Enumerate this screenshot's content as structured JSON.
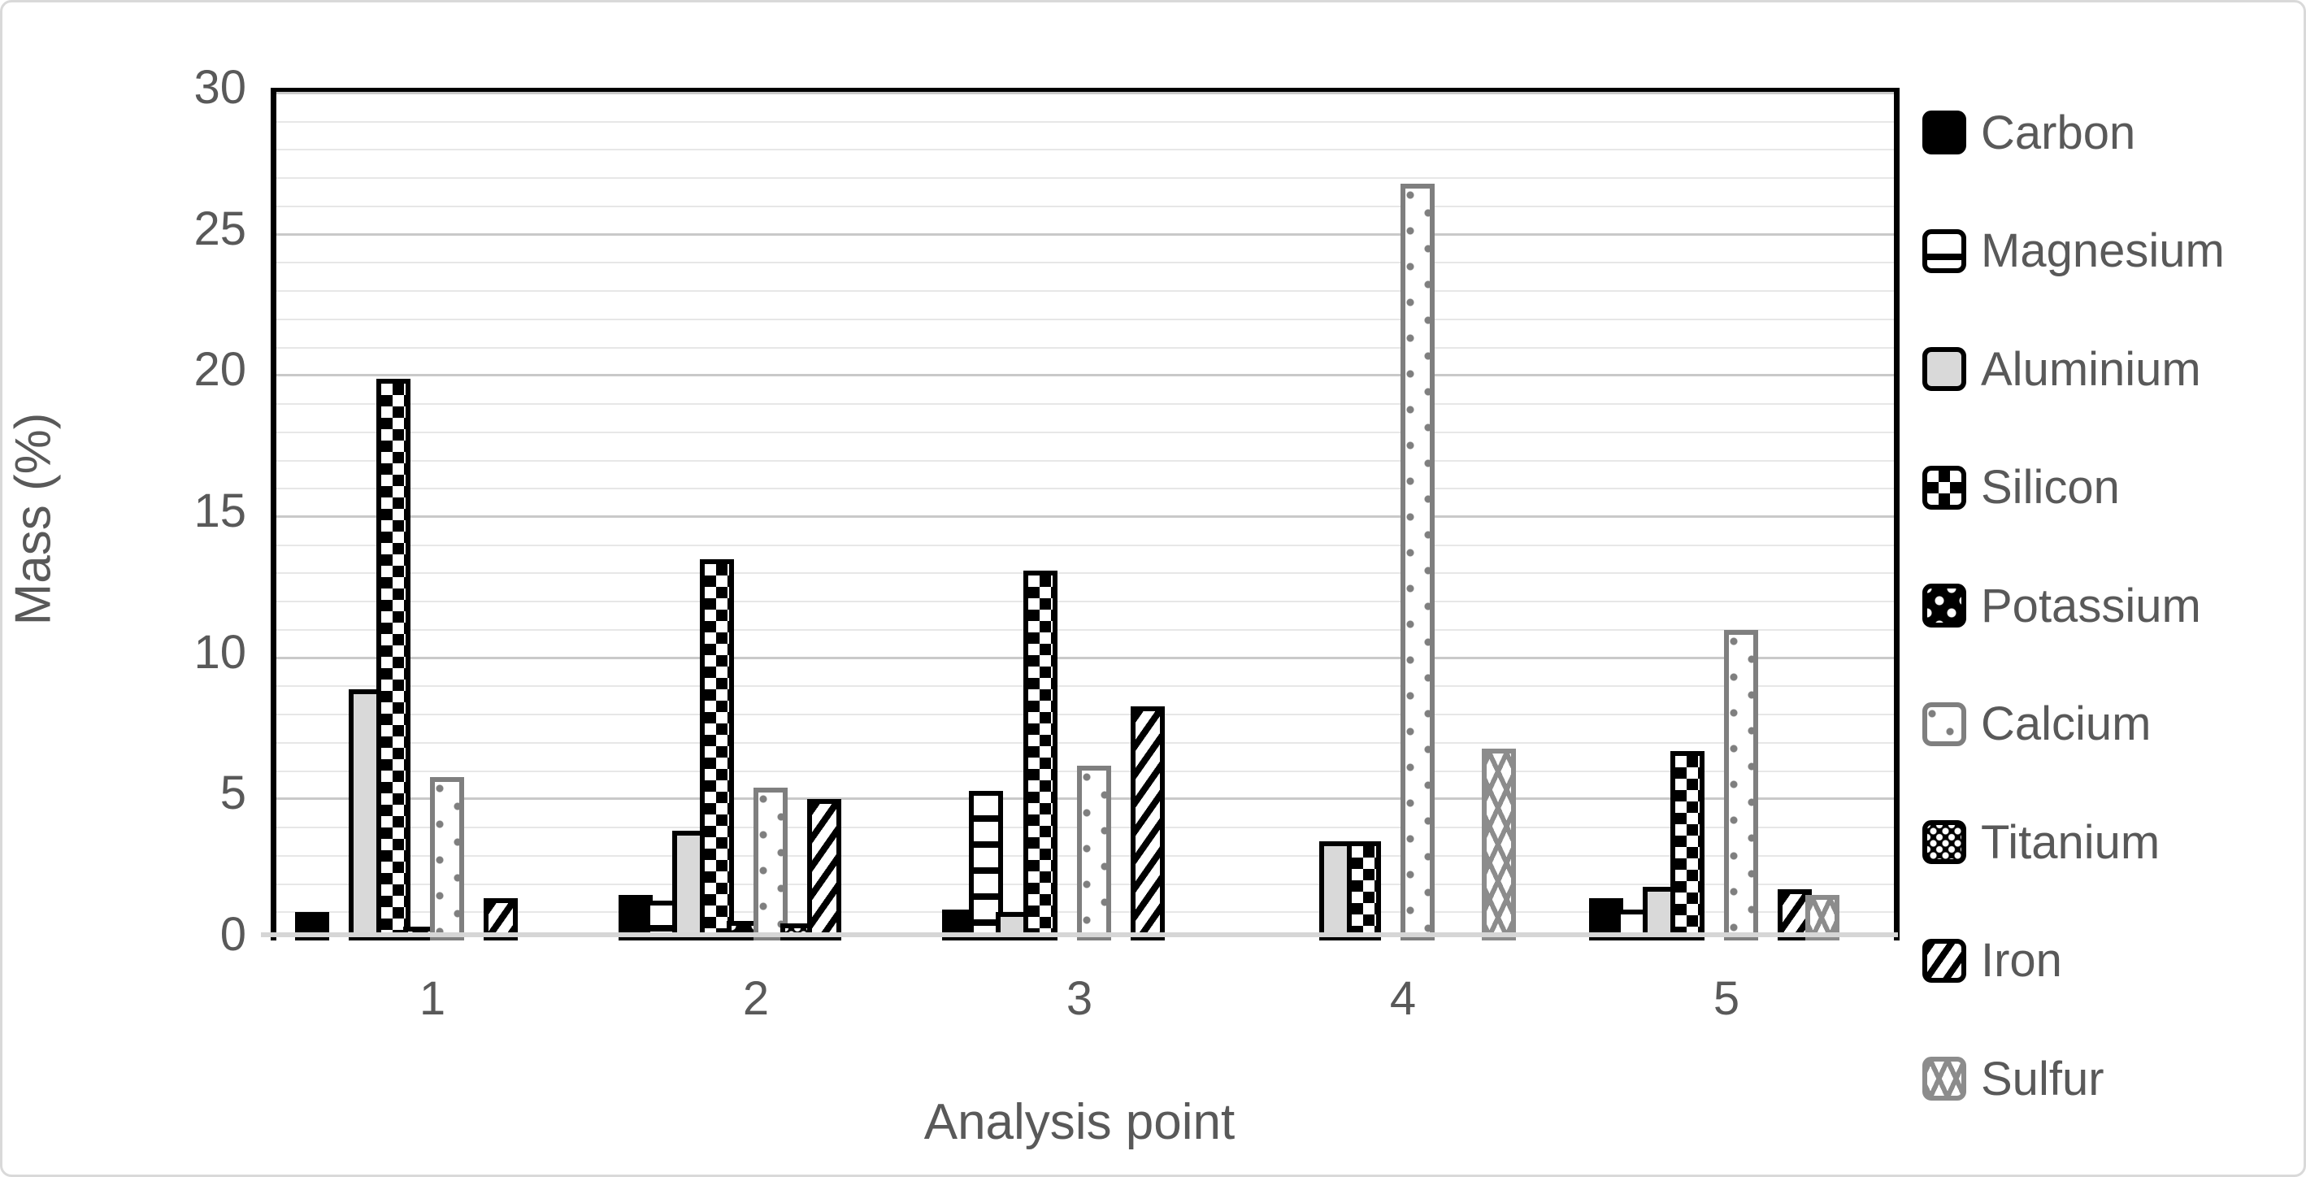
{
  "chart_data": {
    "type": "bar",
    "title": "",
    "xlabel": "Analysis point",
    "ylabel": "Mass (%)",
    "categories": [
      "1",
      "2",
      "3",
      "4",
      "5"
    ],
    "series": [
      {
        "name": "Carbon",
        "pattern": "carbon",
        "values": [
          1.0,
          1.6,
          1.1,
          0,
          1.5
        ]
      },
      {
        "name": "Magnesium",
        "pattern": "magnesium",
        "values": [
          0,
          1.4,
          5.3,
          0,
          1.1
        ]
      },
      {
        "name": "Aluminium",
        "pattern": "aluminium",
        "values": [
          8.9,
          3.9,
          1.0,
          3.5,
          1.9
        ]
      },
      {
        "name": "Silicon",
        "pattern": "silicon",
        "values": [
          19.9,
          13.5,
          13.1,
          3.5,
          6.7
        ]
      },
      {
        "name": "Potassium",
        "pattern": "potassium",
        "values": [
          0.5,
          0.7,
          0,
          0,
          0
        ]
      },
      {
        "name": "Calcium",
        "pattern": "calcium",
        "values": [
          5.8,
          5.4,
          6.2,
          26.8,
          11.0
        ]
      },
      {
        "name": "Titanium",
        "pattern": "titanium",
        "values": [
          0,
          0.6,
          0,
          0,
          0
        ]
      },
      {
        "name": "Iron",
        "pattern": "iron",
        "values": [
          1.5,
          5.0,
          8.3,
          0,
          1.8
        ]
      },
      {
        "name": "Sulfur",
        "pattern": "sulfur",
        "values": [
          0,
          0,
          0,
          6.8,
          1.6
        ]
      }
    ],
    "ylim": [
      0,
      30
    ],
    "ytick_step": 5,
    "minor_grid_step": 1,
    "grid": true,
    "legend_position": "right",
    "text_color": "#595959"
  }
}
